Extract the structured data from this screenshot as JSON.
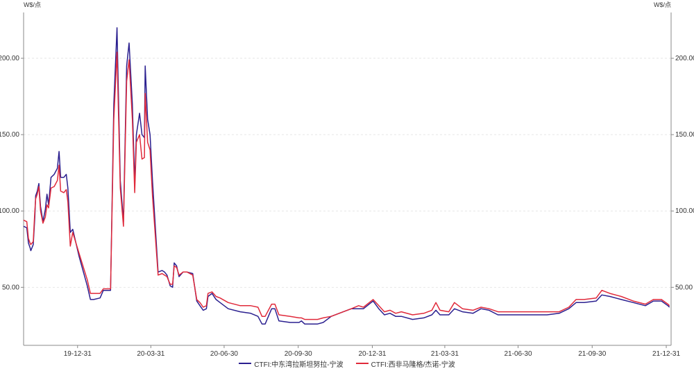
{
  "chart_data": {
    "type": "line",
    "y_unit_left": "W$/点",
    "y_unit_right": "W$/点",
    "ylim": [
      12,
      230
    ],
    "yticks": [
      50,
      100,
      150,
      200
    ],
    "ytick_labels": [
      "50.00",
      "100.00",
      "150.00",
      "200.00"
    ],
    "xlim": [
      "2019-10-25",
      "2022-01-06"
    ],
    "xticks": [
      "2019-12-31",
      "2020-03-31",
      "2020-06-30",
      "2020-09-30",
      "2020-12-31",
      "2021-03-31",
      "2021-06-30",
      "2021-09-30",
      "2021-12-31"
    ],
    "xtick_labels": [
      "19-12-31",
      "20-03-31",
      "20-06-30",
      "20-09-30",
      "20-12-31",
      "21-03-31",
      "21-06-30",
      "21-09-30",
      "21-12-31"
    ],
    "grid": true,
    "legend_position": "bottom-center",
    "series": [
      {
        "name": "CTFI:中东湾拉斯坦努拉-宁波",
        "color": "#2a1f8f",
        "points": [
          [
            "2019-10-25",
            90
          ],
          [
            "2019-10-29",
            89
          ],
          [
            "2019-10-31",
            79
          ],
          [
            "2019-11-02",
            76
          ],
          [
            "2019-11-03",
            74
          ],
          [
            "2019-11-06",
            78
          ],
          [
            "2019-11-08",
            96
          ],
          [
            "2019-11-09",
            110
          ],
          [
            "2019-11-11",
            113
          ],
          [
            "2019-11-13",
            118
          ],
          [
            "2019-11-15",
            103
          ],
          [
            "2019-11-18",
            93
          ],
          [
            "2019-11-21",
            101
          ],
          [
            "2019-11-23",
            111
          ],
          [
            "2019-11-25",
            104
          ],
          [
            "2019-11-28",
            122
          ],
          [
            "2019-12-02",
            124
          ],
          [
            "2019-12-06",
            128
          ],
          [
            "2019-12-08",
            139
          ],
          [
            "2019-12-10",
            122
          ],
          [
            "2019-12-14",
            122
          ],
          [
            "2019-12-17",
            124
          ],
          [
            "2019-12-19",
            115
          ],
          [
            "2019-12-22",
            86
          ],
          [
            "2019-12-25",
            88
          ],
          [
            "2020-01-02",
            70
          ],
          [
            "2020-01-12",
            51
          ],
          [
            "2020-01-16",
            42
          ],
          [
            "2020-01-20",
            42
          ],
          [
            "2020-01-28",
            43
          ],
          [
            "2020-02-01",
            48
          ],
          [
            "2020-02-05",
            48
          ],
          [
            "2020-02-10",
            48
          ],
          [
            "2020-02-14",
            170
          ],
          [
            "2020-02-18",
            220
          ],
          [
            "2020-02-22",
            120
          ],
          [
            "2020-02-26",
            93
          ],
          [
            "2020-03-01",
            195
          ],
          [
            "2020-03-04",
            210
          ],
          [
            "2020-03-08",
            170
          ],
          [
            "2020-03-11",
            118
          ],
          [
            "2020-03-13",
            150
          ],
          [
            "2020-03-17",
            164
          ],
          [
            "2020-03-20",
            150
          ],
          [
            "2020-03-23",
            148
          ],
          [
            "2020-03-24",
            195
          ],
          [
            "2020-03-27",
            160
          ],
          [
            "2020-03-30",
            150
          ],
          [
            "2020-04-02",
            120
          ],
          [
            "2020-04-09",
            60
          ],
          [
            "2020-04-14",
            61
          ],
          [
            "2020-04-17",
            60
          ],
          [
            "2020-04-20",
            58
          ],
          [
            "2020-04-24",
            51
          ],
          [
            "2020-04-27",
            50
          ],
          [
            "2020-04-29",
            66
          ],
          [
            "2020-05-02",
            64
          ],
          [
            "2020-05-05",
            57
          ],
          [
            "2020-05-10",
            60
          ],
          [
            "2020-05-15",
            60
          ],
          [
            "2020-05-22",
            59
          ],
          [
            "2020-05-27",
            41
          ],
          [
            "2020-05-31",
            38
          ],
          [
            "2020-06-04",
            35
          ],
          [
            "2020-06-08",
            36
          ],
          [
            "2020-06-10",
            44
          ],
          [
            "2020-06-15",
            46
          ],
          [
            "2020-06-20",
            42
          ],
          [
            "2020-06-25",
            40
          ],
          [
            "2020-07-05",
            36
          ],
          [
            "2020-07-20",
            34
          ],
          [
            "2020-08-02",
            33
          ],
          [
            "2020-08-11",
            31
          ],
          [
            "2020-08-16",
            26
          ],
          [
            "2020-08-20",
            26
          ],
          [
            "2020-08-28",
            36
          ],
          [
            "2020-09-01",
            36
          ],
          [
            "2020-09-06",
            28
          ],
          [
            "2020-09-20",
            27
          ],
          [
            "2020-10-01",
            27
          ],
          [
            "2020-10-04",
            28
          ],
          [
            "2020-10-08",
            26
          ],
          [
            "2020-10-24",
            26
          ],
          [
            "2020-10-31",
            27
          ],
          [
            "2020-11-10",
            31
          ],
          [
            "2020-11-25",
            34
          ],
          [
            "2020-12-05",
            36
          ],
          [
            "2020-12-14",
            36
          ],
          [
            "2020-12-20",
            36
          ],
          [
            "2021-01-01",
            41
          ],
          [
            "2021-01-08",
            36
          ],
          [
            "2021-01-15",
            32
          ],
          [
            "2021-01-22",
            33
          ],
          [
            "2021-01-29",
            31
          ],
          [
            "2021-02-05",
            31
          ],
          [
            "2021-02-19",
            29
          ],
          [
            "2021-03-05",
            30
          ],
          [
            "2021-03-15",
            32
          ],
          [
            "2021-03-20",
            35
          ],
          [
            "2021-03-25",
            32
          ],
          [
            "2021-04-05",
            32
          ],
          [
            "2021-04-12",
            36
          ],
          [
            "2021-04-22",
            34
          ],
          [
            "2021-05-05",
            33
          ],
          [
            "2021-05-15",
            36
          ],
          [
            "2021-05-25",
            35
          ],
          [
            "2021-06-05",
            32
          ],
          [
            "2021-06-20",
            32
          ],
          [
            "2021-07-05",
            32
          ],
          [
            "2021-07-20",
            32
          ],
          [
            "2021-08-05",
            32
          ],
          [
            "2021-08-20",
            33
          ],
          [
            "2021-09-01",
            36
          ],
          [
            "2021-09-10",
            40
          ],
          [
            "2021-09-20",
            40
          ],
          [
            "2021-10-05",
            41
          ],
          [
            "2021-10-12",
            45
          ],
          [
            "2021-10-22",
            44
          ],
          [
            "2021-11-05",
            42
          ],
          [
            "2021-11-20",
            40
          ],
          [
            "2021-12-05",
            38
          ],
          [
            "2021-12-15",
            41
          ],
          [
            "2021-12-25",
            41
          ],
          [
            "2022-01-02",
            38
          ],
          [
            "2022-01-04",
            37
          ]
        ]
      },
      {
        "name": "CTFI:西非马隆格/杰诺-宁波",
        "color": "#e0293a",
        "points": [
          [
            "2019-10-25",
            94
          ],
          [
            "2019-10-29",
            93
          ],
          [
            "2019-10-31",
            82
          ],
          [
            "2019-11-02",
            79
          ],
          [
            "2019-11-03",
            78
          ],
          [
            "2019-11-06",
            80
          ],
          [
            "2019-11-08",
            100
          ],
          [
            "2019-11-09",
            108
          ],
          [
            "2019-11-11",
            111
          ],
          [
            "2019-11-13",
            116
          ],
          [
            "2019-11-15",
            100
          ],
          [
            "2019-11-18",
            92
          ],
          [
            "2019-11-21",
            96
          ],
          [
            "2019-11-23",
            104
          ],
          [
            "2019-11-25",
            102
          ],
          [
            "2019-11-28",
            115
          ],
          [
            "2019-12-02",
            116
          ],
          [
            "2019-12-06",
            120
          ],
          [
            "2019-12-08",
            130
          ],
          [
            "2019-12-10",
            113
          ],
          [
            "2019-12-14",
            112
          ],
          [
            "2019-12-17",
            114
          ],
          [
            "2019-12-19",
            106
          ],
          [
            "2019-12-22",
            77
          ],
          [
            "2019-12-25",
            86
          ],
          [
            "2020-01-02",
            72
          ],
          [
            "2020-01-12",
            55
          ],
          [
            "2020-01-16",
            46
          ],
          [
            "2020-01-20",
            46
          ],
          [
            "2020-01-28",
            46
          ],
          [
            "2020-02-01",
            49
          ],
          [
            "2020-02-05",
            49
          ],
          [
            "2020-02-10",
            49
          ],
          [
            "2020-02-14",
            160
          ],
          [
            "2020-02-18",
            204
          ],
          [
            "2020-02-22",
            115
          ],
          [
            "2020-02-26",
            90
          ],
          [
            "2020-03-01",
            185
          ],
          [
            "2020-03-04",
            199
          ],
          [
            "2020-03-08",
            160
          ],
          [
            "2020-03-11",
            112
          ],
          [
            "2020-03-13",
            145
          ],
          [
            "2020-03-17",
            150
          ],
          [
            "2020-03-20",
            134
          ],
          [
            "2020-03-23",
            135
          ],
          [
            "2020-03-24",
            177
          ],
          [
            "2020-03-27",
            145
          ],
          [
            "2020-03-30",
            140
          ],
          [
            "2020-04-02",
            110
          ],
          [
            "2020-04-09",
            58
          ],
          [
            "2020-04-14",
            59
          ],
          [
            "2020-04-17",
            58
          ],
          [
            "2020-04-20",
            57
          ],
          [
            "2020-04-24",
            52
          ],
          [
            "2020-04-27",
            52
          ],
          [
            "2020-04-29",
            64
          ],
          [
            "2020-05-02",
            63
          ],
          [
            "2020-05-05",
            58
          ],
          [
            "2020-05-10",
            60
          ],
          [
            "2020-05-15",
            60
          ],
          [
            "2020-05-22",
            58
          ],
          [
            "2020-05-27",
            42
          ],
          [
            "2020-05-31",
            40
          ],
          [
            "2020-06-04",
            37
          ],
          [
            "2020-06-08",
            38
          ],
          [
            "2020-06-10",
            46
          ],
          [
            "2020-06-15",
            47
          ],
          [
            "2020-06-20",
            44
          ],
          [
            "2020-06-25",
            43
          ],
          [
            "2020-07-05",
            40
          ],
          [
            "2020-07-20",
            38
          ],
          [
            "2020-08-02",
            38
          ],
          [
            "2020-08-11",
            37
          ],
          [
            "2020-08-16",
            31
          ],
          [
            "2020-08-20",
            31
          ],
          [
            "2020-08-28",
            39
          ],
          [
            "2020-09-01",
            39
          ],
          [
            "2020-09-06",
            32
          ],
          [
            "2020-09-20",
            31
          ],
          [
            "2020-10-01",
            30
          ],
          [
            "2020-10-04",
            30
          ],
          [
            "2020-10-08",
            29
          ],
          [
            "2020-10-24",
            29
          ],
          [
            "2020-10-31",
            30
          ],
          [
            "2020-11-10",
            31
          ],
          [
            "2020-11-25",
            34
          ],
          [
            "2020-12-05",
            36
          ],
          [
            "2020-12-14",
            38
          ],
          [
            "2020-12-20",
            37
          ],
          [
            "2021-01-01",
            42
          ],
          [
            "2021-01-08",
            38
          ],
          [
            "2021-01-15",
            34
          ],
          [
            "2021-01-22",
            35
          ],
          [
            "2021-01-29",
            33
          ],
          [
            "2021-02-05",
            34
          ],
          [
            "2021-02-19",
            32
          ],
          [
            "2021-03-05",
            33
          ],
          [
            "2021-03-15",
            35
          ],
          [
            "2021-03-20",
            40
          ],
          [
            "2021-03-25",
            35
          ],
          [
            "2021-04-05",
            34
          ],
          [
            "2021-04-12",
            40
          ],
          [
            "2021-04-22",
            36
          ],
          [
            "2021-05-05",
            35
          ],
          [
            "2021-05-15",
            37
          ],
          [
            "2021-05-25",
            36
          ],
          [
            "2021-06-05",
            34
          ],
          [
            "2021-06-20",
            34
          ],
          [
            "2021-07-05",
            34
          ],
          [
            "2021-07-20",
            34
          ],
          [
            "2021-08-05",
            34
          ],
          [
            "2021-08-20",
            34
          ],
          [
            "2021-09-01",
            37
          ],
          [
            "2021-09-10",
            42
          ],
          [
            "2021-09-20",
            42
          ],
          [
            "2021-10-05",
            43
          ],
          [
            "2021-10-12",
            48
          ],
          [
            "2021-10-22",
            46
          ],
          [
            "2021-11-05",
            44
          ],
          [
            "2021-11-20",
            41
          ],
          [
            "2021-12-05",
            39
          ],
          [
            "2021-12-15",
            42
          ],
          [
            "2021-12-25",
            42
          ],
          [
            "2022-01-02",
            39
          ],
          [
            "2022-01-04",
            38
          ]
        ]
      }
    ]
  }
}
